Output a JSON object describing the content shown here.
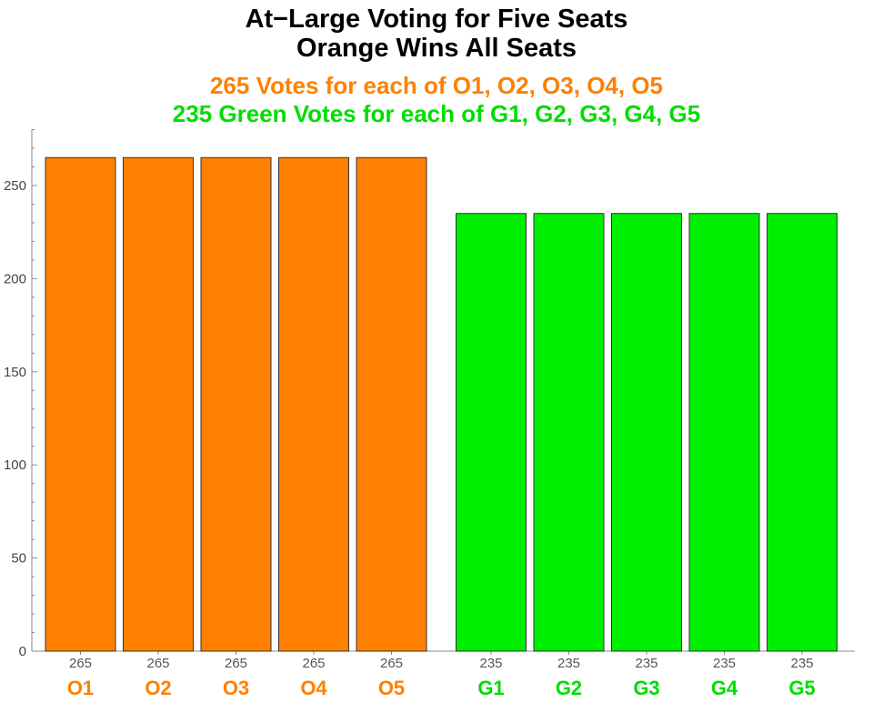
{
  "title_lines": [
    "At−Large Voting for Five Seats",
    "Orange Wins All Seats"
  ],
  "subtitle_lines": [
    "265 Votes for each of O1, O2, O3, O4, O5",
    "235 Green Votes for each of G1, G2, G3, G4, G5"
  ],
  "colors": {
    "orange": "#FF8000",
    "green": "#00EE00",
    "orange_text": "#FF8000",
    "green_text": "#00DD00",
    "axis": "#888888",
    "bar_edge": "#333333"
  },
  "chart_data": {
    "type": "bar",
    "title": "At−Large Voting for Five Seats",
    "categories": [
      "O1",
      "O2",
      "O3",
      "O4",
      "O5",
      "G1",
      "G2",
      "G3",
      "G4",
      "G5"
    ],
    "groups": [
      {
        "categories": [
          "O1",
          "O2",
          "O3",
          "O4",
          "O5"
        ],
        "values": [
          265,
          265,
          265,
          265,
          265
        ],
        "color": "orange"
      },
      {
        "categories": [
          "G1",
          "G2",
          "G3",
          "G4",
          "G5"
        ],
        "values": [
          235,
          235,
          235,
          235,
          235
        ],
        "color": "green"
      }
    ],
    "values": [
      265,
      265,
      265,
      265,
      265,
      235,
      235,
      235,
      235,
      235
    ],
    "value_labels": [
      "265",
      "265",
      "265",
      "265",
      "265",
      "235",
      "235",
      "235",
      "235",
      "235"
    ],
    "ylim": [
      0,
      280
    ],
    "yticks": [
      0,
      50,
      100,
      150,
      200,
      250
    ],
    "xlabel": "",
    "ylabel": "",
    "grid": false,
    "legend": "none"
  }
}
